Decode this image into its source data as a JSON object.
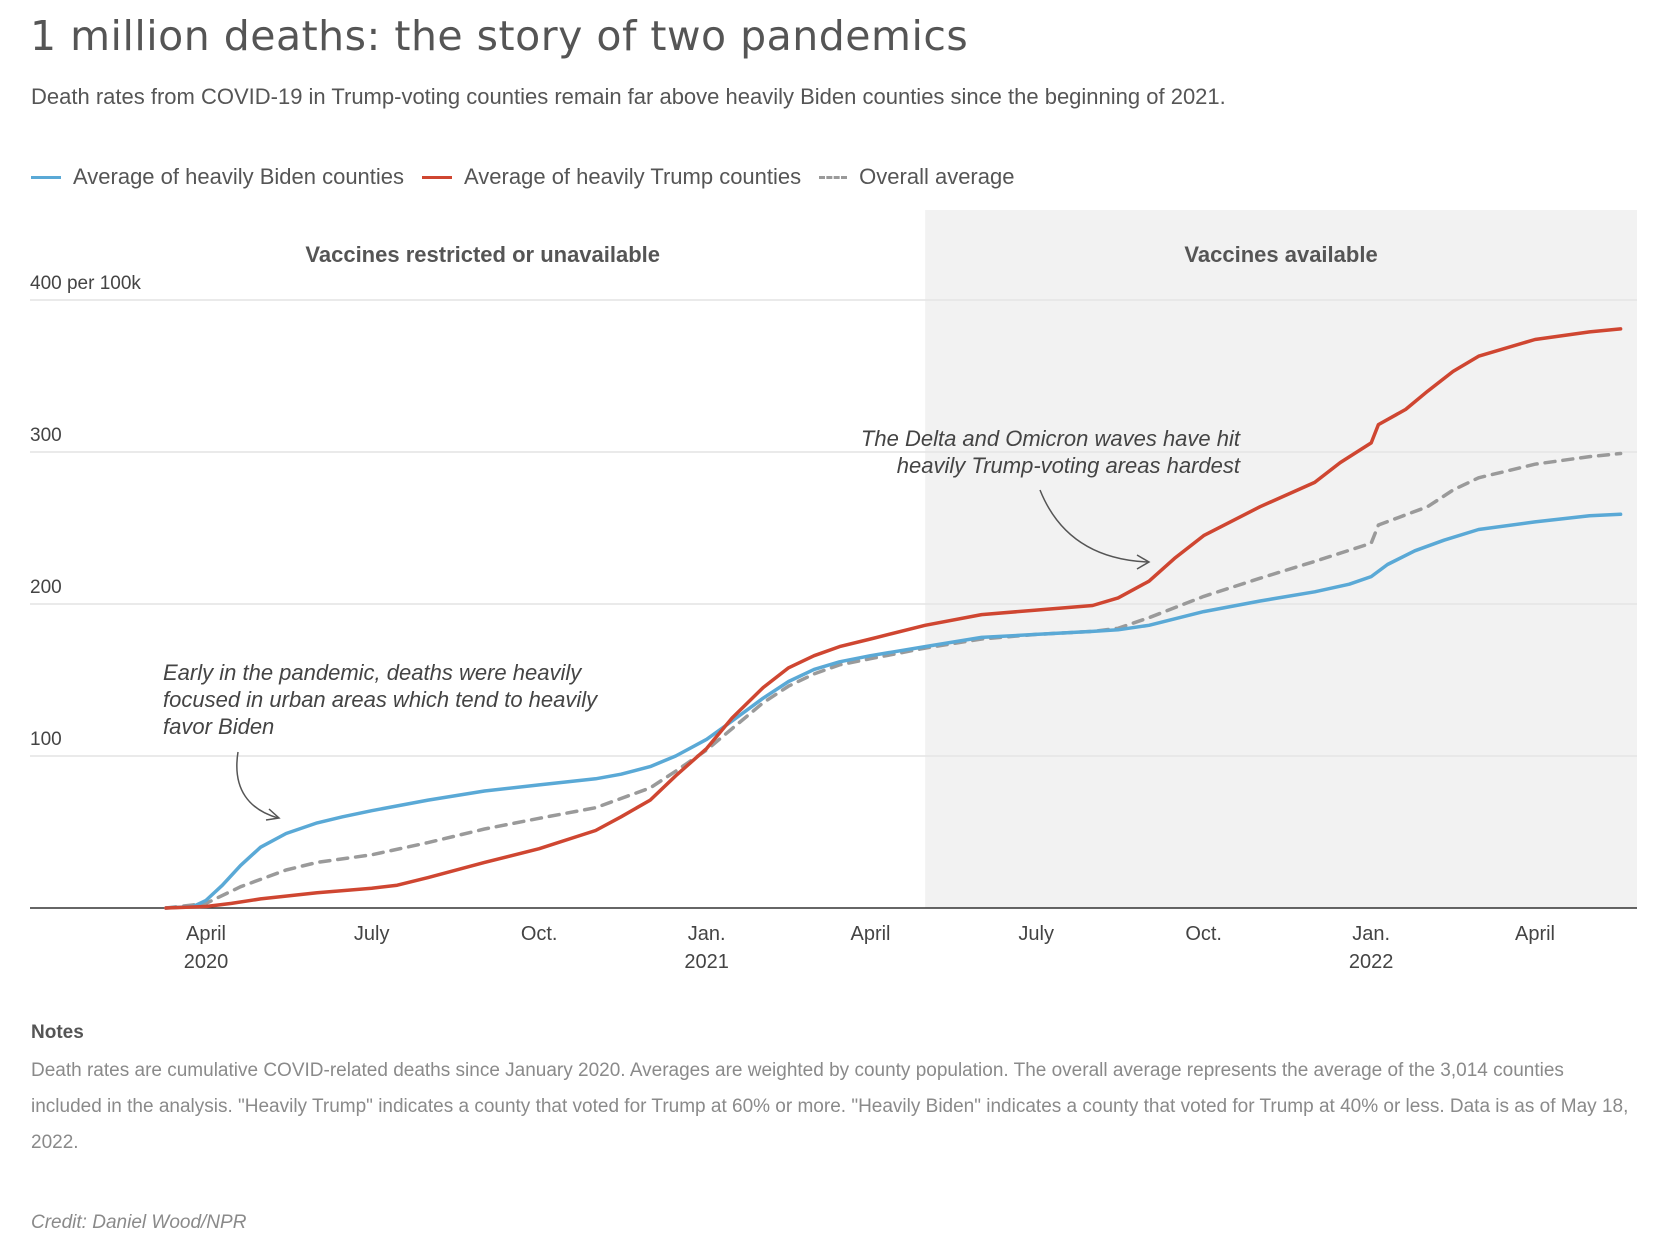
{
  "header": {
    "title": "1 million deaths: the story of two pandemics",
    "subtitle": "Death rates from COVID-19 in Trump-voting counties remain far above heavily Biden counties since the beginning of 2021."
  },
  "legend": {
    "biden": "Average of heavily Biden counties",
    "trump": "Average of heavily Trump counties",
    "overall": "Overall average"
  },
  "colors": {
    "biden": "#5aa9d6",
    "trump": "#cf4631",
    "overall": "#9a9a9a",
    "shade": "#f2f2f2"
  },
  "notes": {
    "heading": "Notes",
    "text": "Death rates are cumulative COVID-related deaths since January 2020. Averages are weighted by county population. The overall average represents the average of the 3,014 counties included in the analysis. \"Heavily Trump\" indicates a county that voted for Trump at 60% or more. \"Heavily Biden\" indicates a county that voted for Trump at 40% or less. Data is as of May 18, 2022."
  },
  "credit": "Credit: Daniel Wood/NPR",
  "chart_data": {
    "type": "line",
    "x_unit": "date",
    "xlim": [
      "2020-01-01",
      "2022-06-01"
    ],
    "ylim": [
      0,
      400
    ],
    "y_ticks": [
      {
        "value": 100,
        "label": "100"
      },
      {
        "value": 200,
        "label": "200"
      },
      {
        "value": 300,
        "label": "300"
      },
      {
        "value": 400,
        "label": "400 per 100k"
      }
    ],
    "x_ticks": [
      {
        "date": "2020-04-01",
        "label": "April",
        "year": "2020"
      },
      {
        "date": "2020-07-01",
        "label": "July",
        "year": ""
      },
      {
        "date": "2020-10-01",
        "label": "Oct.",
        "year": ""
      },
      {
        "date": "2021-01-01",
        "label": "Jan.",
        "year": "2021"
      },
      {
        "date": "2021-04-01",
        "label": "April",
        "year": ""
      },
      {
        "date": "2021-07-01",
        "label": "July",
        "year": ""
      },
      {
        "date": "2021-10-01",
        "label": "Oct.",
        "year": ""
      },
      {
        "date": "2022-01-01",
        "label": "Jan.",
        "year": "2022"
      },
      {
        "date": "2022-04-01",
        "label": "April",
        "year": ""
      }
    ],
    "regions": [
      {
        "label": "Vaccines restricted or unavailable",
        "start": "2020-01-01",
        "end": "2021-05-01",
        "shaded": false
      },
      {
        "label": "Vaccines available",
        "start": "2021-05-01",
        "end": "2022-06-01",
        "shaded": true
      }
    ],
    "grid": true,
    "series": [
      {
        "key": "biden",
        "name": "Average of heavily Biden counties",
        "dash": false,
        "points": [
          [
            "2020-03-10",
            0
          ],
          [
            "2020-03-25",
            1
          ],
          [
            "2020-04-01",
            5
          ],
          [
            "2020-04-10",
            15
          ],
          [
            "2020-04-20",
            28
          ],
          [
            "2020-05-01",
            40
          ],
          [
            "2020-05-15",
            49
          ],
          [
            "2020-06-01",
            56
          ],
          [
            "2020-06-15",
            60
          ],
          [
            "2020-07-01",
            64
          ],
          [
            "2020-08-01",
            71
          ],
          [
            "2020-09-01",
            77
          ],
          [
            "2020-10-01",
            81
          ],
          [
            "2020-11-01",
            85
          ],
          [
            "2020-11-15",
            88
          ],
          [
            "2020-12-01",
            93
          ],
          [
            "2020-12-15",
            100
          ],
          [
            "2021-01-01",
            111
          ],
          [
            "2021-01-15",
            123
          ],
          [
            "2021-02-01",
            138
          ],
          [
            "2021-02-15",
            149
          ],
          [
            "2021-03-01",
            157
          ],
          [
            "2021-03-15",
            162
          ],
          [
            "2021-04-01",
            166
          ],
          [
            "2021-05-01",
            172
          ],
          [
            "2021-06-01",
            178
          ],
          [
            "2021-07-01",
            180
          ],
          [
            "2021-08-01",
            182
          ],
          [
            "2021-08-15",
            183
          ],
          [
            "2021-09-01",
            186
          ],
          [
            "2021-10-01",
            195
          ],
          [
            "2021-11-01",
            202
          ],
          [
            "2021-12-01",
            208
          ],
          [
            "2021-12-20",
            213
          ],
          [
            "2022-01-01",
            218
          ],
          [
            "2022-01-10",
            226
          ],
          [
            "2022-01-25",
            235
          ],
          [
            "2022-02-10",
            242
          ],
          [
            "2022-03-01",
            249
          ],
          [
            "2022-04-01",
            254
          ],
          [
            "2022-05-01",
            258
          ],
          [
            "2022-05-18",
            259
          ]
        ]
      },
      {
        "key": "trump",
        "name": "Average of heavily Trump counties",
        "dash": false,
        "points": [
          [
            "2020-03-10",
            0
          ],
          [
            "2020-04-01",
            1
          ],
          [
            "2020-04-15",
            3
          ],
          [
            "2020-05-01",
            6
          ],
          [
            "2020-06-01",
            10
          ],
          [
            "2020-07-01",
            13
          ],
          [
            "2020-07-15",
            15
          ],
          [
            "2020-08-01",
            20
          ],
          [
            "2020-09-01",
            30
          ],
          [
            "2020-10-01",
            39
          ],
          [
            "2020-11-01",
            51
          ],
          [
            "2020-11-15",
            60
          ],
          [
            "2020-12-01",
            71
          ],
          [
            "2020-12-15",
            87
          ],
          [
            "2021-01-01",
            105
          ],
          [
            "2021-01-15",
            125
          ],
          [
            "2021-02-01",
            145
          ],
          [
            "2021-02-15",
            158
          ],
          [
            "2021-03-01",
            166
          ],
          [
            "2021-03-15",
            172
          ],
          [
            "2021-04-01",
            177
          ],
          [
            "2021-05-01",
            186
          ],
          [
            "2021-06-01",
            193
          ],
          [
            "2021-07-01",
            196
          ],
          [
            "2021-08-01",
            199
          ],
          [
            "2021-08-15",
            204
          ],
          [
            "2021-09-01",
            215
          ],
          [
            "2021-09-15",
            230
          ],
          [
            "2021-10-01",
            245
          ],
          [
            "2021-11-01",
            264
          ],
          [
            "2021-12-01",
            280
          ],
          [
            "2021-12-15",
            293
          ],
          [
            "2022-01-01",
            306
          ],
          [
            "2022-01-05",
            318
          ],
          [
            "2022-01-20",
            328
          ],
          [
            "2022-02-01",
            340
          ],
          [
            "2022-02-15",
            353
          ],
          [
            "2022-03-01",
            363
          ],
          [
            "2022-04-01",
            374
          ],
          [
            "2022-05-01",
            379
          ],
          [
            "2022-05-18",
            381
          ]
        ]
      },
      {
        "key": "overall",
        "name": "Overall average",
        "dash": true,
        "points": [
          [
            "2020-03-10",
            0
          ],
          [
            "2020-04-01",
            3
          ],
          [
            "2020-04-20",
            14
          ],
          [
            "2020-05-15",
            25
          ],
          [
            "2020-06-01",
            30
          ],
          [
            "2020-07-01",
            35
          ],
          [
            "2020-08-01",
            43
          ],
          [
            "2020-09-01",
            52
          ],
          [
            "2020-10-01",
            59
          ],
          [
            "2020-11-01",
            66
          ],
          [
            "2020-12-01",
            79
          ],
          [
            "2020-12-15",
            90
          ],
          [
            "2021-01-01",
            104
          ],
          [
            "2021-01-15",
            118
          ],
          [
            "2021-02-01",
            135
          ],
          [
            "2021-02-15",
            146
          ],
          [
            "2021-03-01",
            154
          ],
          [
            "2021-03-15",
            160
          ],
          [
            "2021-04-01",
            164
          ],
          [
            "2021-05-01",
            171
          ],
          [
            "2021-06-01",
            177
          ],
          [
            "2021-07-01",
            180
          ],
          [
            "2021-08-01",
            182
          ],
          [
            "2021-08-15",
            184
          ],
          [
            "2021-09-01",
            191
          ],
          [
            "2021-10-01",
            205
          ],
          [
            "2021-11-01",
            217
          ],
          [
            "2021-12-01",
            228
          ],
          [
            "2022-01-01",
            240
          ],
          [
            "2022-01-05",
            252
          ],
          [
            "2022-02-01",
            264
          ],
          [
            "2022-02-15",
            275
          ],
          [
            "2022-03-01",
            283
          ],
          [
            "2022-04-01",
            292
          ],
          [
            "2022-05-01",
            297
          ],
          [
            "2022-05-18",
            299
          ]
        ]
      }
    ],
    "annotations": [
      {
        "id": "early",
        "lines": [
          "Early in the pandemic, deaths were heavily",
          "focused in urban areas which tend to heavily",
          "favor Biden"
        ],
        "anchor": "start"
      },
      {
        "id": "delta",
        "lines": [
          "The Delta and Omicron waves have hit",
          "heavily Trump-voting areas hardest"
        ],
        "anchor": "end"
      }
    ]
  }
}
